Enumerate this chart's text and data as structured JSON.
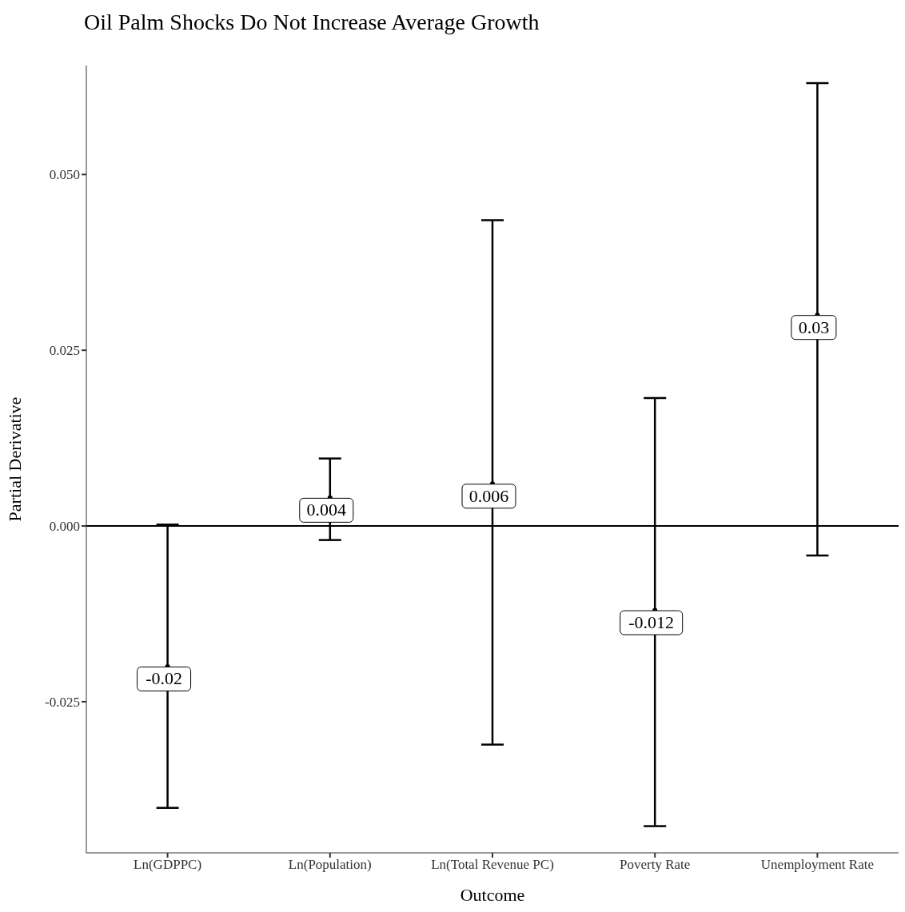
{
  "chart_data": {
    "type": "scatter",
    "title": "Oil Palm Shocks Do Not Increase Average Growth",
    "xlabel": "Outcome",
    "ylabel": "Partial Derivative",
    "categories": [
      "Ln(GDPPC)",
      "Ln(Population)",
      "Ln(Total Revenue PC)",
      "Poverty Rate",
      "Unemployment Rate"
    ],
    "values": [
      -0.02,
      0.004,
      0.006,
      -0.012,
      0.03
    ],
    "errors": [
      [
        -0.0401,
        0.0002
      ],
      [
        -0.002,
        0.0096
      ],
      [
        -0.0311,
        0.0435
      ],
      [
        -0.0427,
        0.0182
      ],
      [
        -0.0042,
        0.063
      ]
    ],
    "color": "#000000",
    "marker": "circle",
    "data_labels": true,
    "ylim": [
      -0.0465,
      0.0655
    ],
    "yticks": [
      -0.025,
      {
        "value": 0,
        "label": "0.000"
      },
      0.025,
      {
        "value": 0.05,
        "label": "0.050"
      }
    ],
    "ref_lines": [
      {
        "axis": "y",
        "value": 0,
        "color": "#000000"
      }
    ]
  }
}
